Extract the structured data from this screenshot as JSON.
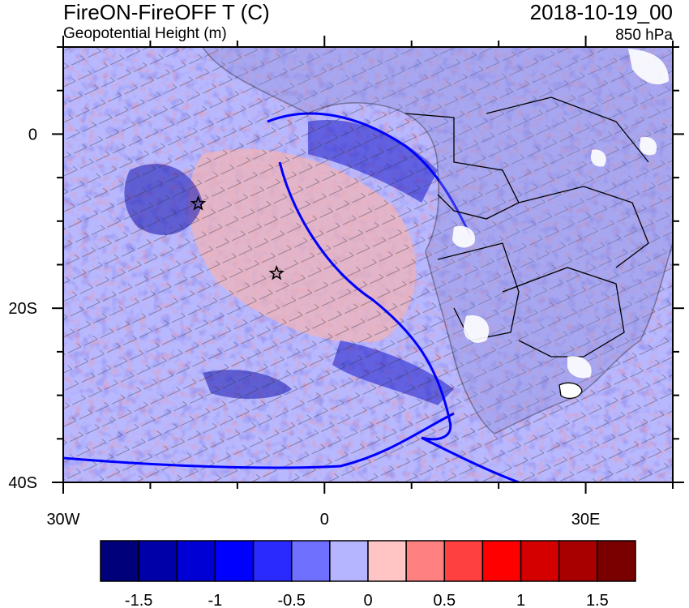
{
  "header": {
    "title": "FireON-FireOFF T (C)",
    "subtitle": "Geopotential Height (m)",
    "datetime": "2018-10-19_00",
    "level": "850 hPa"
  },
  "map": {
    "lon_range": [
      -30,
      40
    ],
    "lat_range": [
      -40,
      10
    ],
    "x_ticks": [
      "30W",
      "0",
      "30E"
    ],
    "y_ticks": [
      "0",
      "20S",
      "40S"
    ],
    "markers": [
      {
        "name": "star-marker-1",
        "lon": -14.5,
        "lat": -8
      },
      {
        "name": "star-marker-2",
        "lon": -5.5,
        "lat": -16
      }
    ]
  },
  "colorbar": {
    "colors": [
      "#00007a",
      "#0000a8",
      "#0000d4",
      "#0000ff",
      "#2a2aff",
      "#7070ff",
      "#b4b4ff",
      "#ffc4c4",
      "#ff8080",
      "#ff4040",
      "#ff0000",
      "#d40000",
      "#a80000",
      "#7a0000"
    ],
    "labels": [
      "-1.5",
      "-1",
      "-0.5",
      "0",
      "0.5",
      "1",
      "1.5"
    ]
  }
}
